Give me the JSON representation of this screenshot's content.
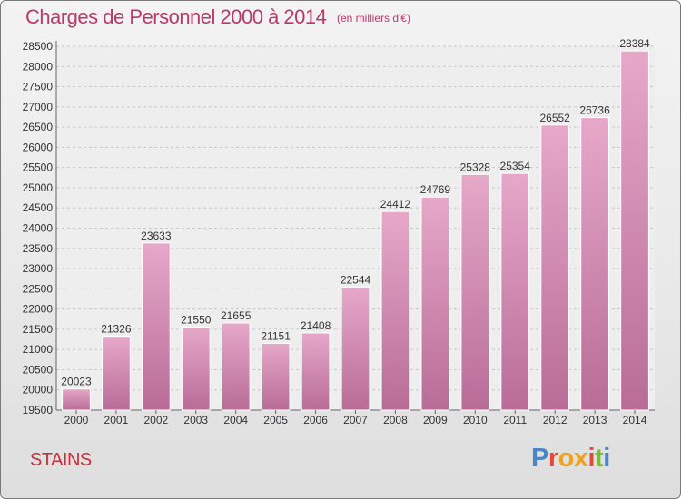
{
  "header": {
    "title": "Charges de Personnel 2000 à 2014",
    "subtitle": "(en milliers d'€)"
  },
  "footer": {
    "city": "STAINS",
    "logo_text": "Proxiti"
  },
  "colors": {
    "bar_top": "#e6a8c9",
    "bar_bottom": "#b86c97",
    "bar_edge": "#ffffff",
    "grid": "#c8c8c8",
    "title": "#b73a6a",
    "city": "#cc2d3b"
  },
  "chart_data": {
    "type": "bar",
    "title": "Charges de Personnel 2000 à 2014",
    "subtitle": "(en milliers d'€)",
    "categories": [
      "2000",
      "2001",
      "2002",
      "2003",
      "2004",
      "2005",
      "2006",
      "2007",
      "2008",
      "2009",
      "2010",
      "2011",
      "2012",
      "2013",
      "2014"
    ],
    "values": [
      20023,
      21326,
      23633,
      21550,
      21655,
      21151,
      21408,
      22544,
      24412,
      24769,
      25328,
      25354,
      26552,
      26736,
      28384
    ],
    "ylim": [
      19500,
      28500
    ],
    "yticks": [
      19500,
      20000,
      20500,
      21000,
      21500,
      22000,
      22500,
      23000,
      23500,
      24000,
      24500,
      25000,
      25500,
      26000,
      26500,
      27000,
      27500,
      28000,
      28500
    ],
    "xlabel": "",
    "ylabel": "",
    "grid": true,
    "legend": "none"
  }
}
